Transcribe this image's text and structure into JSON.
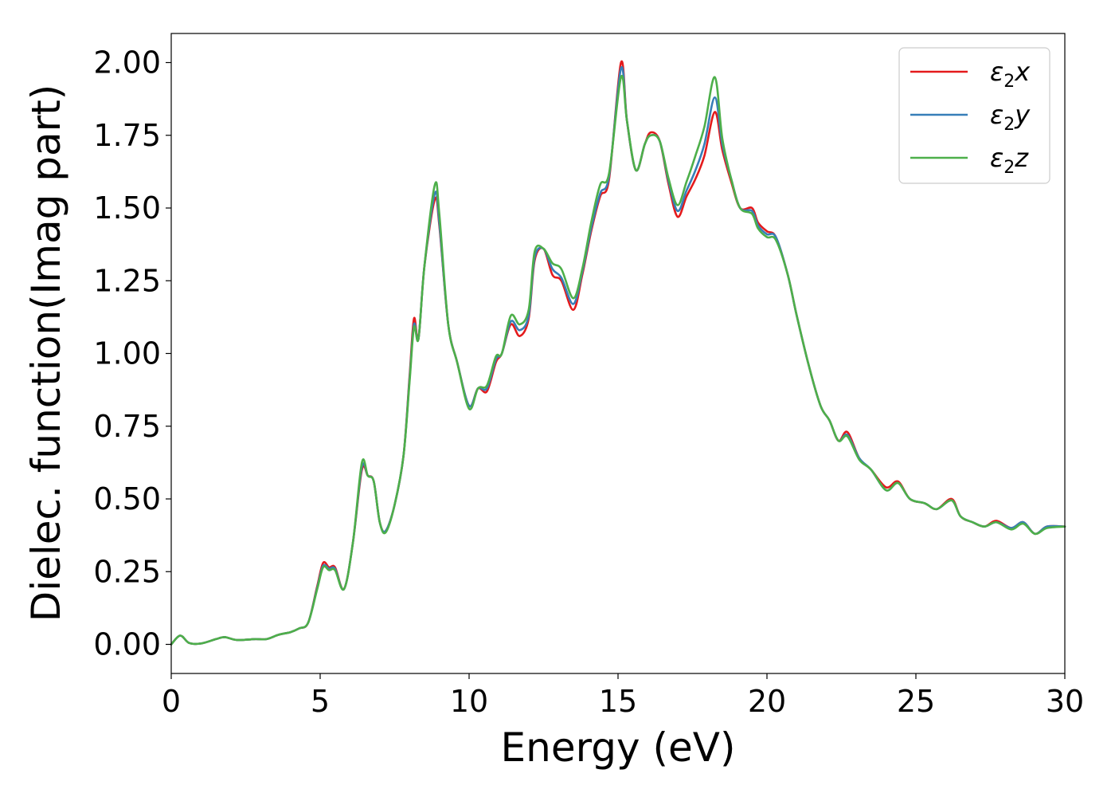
{
  "chart_data": {
    "type": "line",
    "title": "",
    "xlabel": "Energy (eV)",
    "ylabel": "Dielec. function(Imag part)",
    "xlim": [
      0,
      30
    ],
    "ylim": [
      -0.1,
      2.1
    ],
    "x_ticks": [
      "0",
      "5",
      "10",
      "15",
      "20",
      "25",
      "30"
    ],
    "y_ticks": [
      "0.00",
      "0.25",
      "0.50",
      "0.75",
      "1.00",
      "1.25",
      "1.50",
      "1.75",
      "2.00"
    ],
    "grid": false,
    "legend_position": "top-right",
    "legend": [
      {
        "label_main": "ε",
        "label_sub": "2",
        "label_end": "x"
      },
      {
        "label_main": "ε",
        "label_sub": "2",
        "label_end": "y"
      },
      {
        "label_main": "ε",
        "label_sub": "2",
        "label_end": "z"
      }
    ],
    "x": [
      0,
      0.3,
      0.6,
      1.0,
      1.5,
      1.8,
      2.2,
      2.8,
      3.2,
      3.6,
      4.0,
      4.3,
      4.6,
      4.9,
      5.1,
      5.3,
      5.5,
      5.8,
      6.1,
      6.4,
      6.6,
      6.8,
      7.0,
      7.2,
      7.5,
      7.8,
      8.0,
      8.15,
      8.3,
      8.5,
      8.85,
      9.0,
      9.3,
      9.6,
      10.0,
      10.3,
      10.6,
      10.9,
      11.1,
      11.4,
      11.7,
      12.0,
      12.2,
      12.5,
      12.8,
      13.1,
      13.5,
      13.8,
      14.1,
      14.4,
      14.7,
      15.1,
      15.3,
      15.6,
      15.9,
      16.1,
      16.4,
      16.7,
      17.0,
      17.3,
      17.6,
      17.9,
      18.25,
      18.5,
      18.8,
      19.1,
      19.5,
      19.7,
      20.0,
      20.3,
      20.7,
      21.0,
      21.4,
      21.8,
      22.1,
      22.4,
      22.7,
      23.1,
      23.5,
      24.0,
      24.4,
      24.8,
      25.3,
      25.7,
      26.2,
      26.5,
      26.9,
      27.3,
      27.7,
      28.2,
      28.6,
      29.0,
      29.4,
      30.0
    ],
    "series": [
      {
        "name": "x",
        "color": "#e41a1c",
        "values": [
          0.0,
          0.03,
          0.005,
          0.003,
          0.018,
          0.025,
          0.015,
          0.018,
          0.018,
          0.033,
          0.042,
          0.055,
          0.075,
          0.2,
          0.28,
          0.265,
          0.265,
          0.19,
          0.35,
          0.6,
          0.58,
          0.56,
          0.42,
          0.39,
          0.48,
          0.65,
          0.92,
          1.12,
          1.05,
          1.3,
          1.53,
          1.44,
          1.1,
          0.97,
          0.82,
          0.88,
          0.87,
          0.97,
          1.0,
          1.1,
          1.06,
          1.12,
          1.32,
          1.36,
          1.27,
          1.25,
          1.15,
          1.27,
          1.42,
          1.54,
          1.6,
          2.0,
          1.8,
          1.63,
          1.72,
          1.76,
          1.73,
          1.58,
          1.47,
          1.54,
          1.6,
          1.68,
          1.83,
          1.7,
          1.59,
          1.5,
          1.5,
          1.45,
          1.42,
          1.4,
          1.27,
          1.13,
          0.96,
          0.82,
          0.77,
          0.7,
          0.73,
          0.64,
          0.6,
          0.54,
          0.56,
          0.5,
          0.485,
          0.465,
          0.5,
          0.44,
          0.42,
          0.405,
          0.425,
          0.4,
          0.42,
          0.38,
          0.405,
          0.405
        ]
      },
      {
        "name": "y",
        "color": "#377eb8",
        "values": [
          0.0,
          0.03,
          0.005,
          0.003,
          0.018,
          0.025,
          0.015,
          0.018,
          0.018,
          0.033,
          0.042,
          0.055,
          0.075,
          0.195,
          0.27,
          0.26,
          0.26,
          0.19,
          0.35,
          0.61,
          0.58,
          0.56,
          0.42,
          0.39,
          0.48,
          0.65,
          0.91,
          1.1,
          1.05,
          1.3,
          1.55,
          1.45,
          1.1,
          0.97,
          0.82,
          0.88,
          0.88,
          0.98,
          1.0,
          1.11,
          1.08,
          1.13,
          1.33,
          1.36,
          1.29,
          1.26,
          1.17,
          1.28,
          1.43,
          1.55,
          1.61,
          1.98,
          1.8,
          1.63,
          1.72,
          1.75,
          1.73,
          1.59,
          1.49,
          1.56,
          1.63,
          1.72,
          1.88,
          1.72,
          1.6,
          1.5,
          1.49,
          1.44,
          1.41,
          1.4,
          1.27,
          1.13,
          0.96,
          0.82,
          0.77,
          0.7,
          0.72,
          0.64,
          0.6,
          0.53,
          0.555,
          0.5,
          0.485,
          0.465,
          0.495,
          0.44,
          0.42,
          0.405,
          0.42,
          0.4,
          0.42,
          0.38,
          0.405,
          0.405
        ]
      },
      {
        "name": "z",
        "color": "#4daf4a",
        "values": [
          0.0,
          0.03,
          0.005,
          0.003,
          0.018,
          0.025,
          0.015,
          0.018,
          0.018,
          0.033,
          0.042,
          0.055,
          0.075,
          0.19,
          0.265,
          0.255,
          0.255,
          0.19,
          0.35,
          0.625,
          0.58,
          0.56,
          0.42,
          0.385,
          0.48,
          0.65,
          0.9,
          1.09,
          1.05,
          1.3,
          1.58,
          1.48,
          1.1,
          0.97,
          0.81,
          0.88,
          0.89,
          0.99,
          1.0,
          1.13,
          1.1,
          1.15,
          1.35,
          1.36,
          1.31,
          1.29,
          1.19,
          1.29,
          1.45,
          1.58,
          1.62,
          1.95,
          1.8,
          1.63,
          1.72,
          1.75,
          1.73,
          1.6,
          1.51,
          1.59,
          1.68,
          1.78,
          1.95,
          1.74,
          1.6,
          1.5,
          1.48,
          1.43,
          1.4,
          1.39,
          1.27,
          1.13,
          0.96,
          0.82,
          0.77,
          0.7,
          0.715,
          0.635,
          0.6,
          0.53,
          0.555,
          0.5,
          0.485,
          0.465,
          0.495,
          0.44,
          0.42,
          0.405,
          0.42,
          0.395,
          0.415,
          0.38,
          0.4,
          0.405
        ]
      }
    ]
  }
}
